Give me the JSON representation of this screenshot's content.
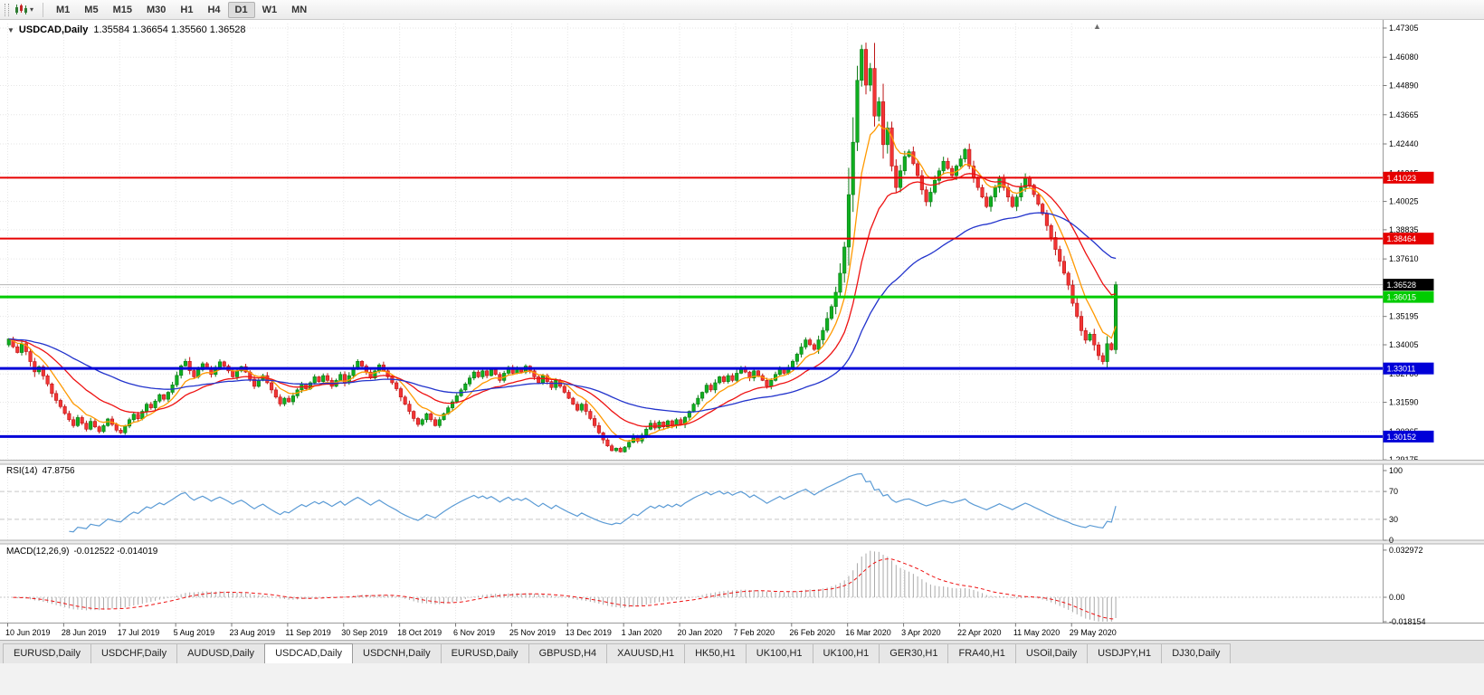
{
  "toolbar": {
    "timeframes": [
      "M1",
      "M5",
      "M15",
      "M30",
      "H1",
      "H4",
      "D1",
      "W1",
      "MN"
    ],
    "active": "D1"
  },
  "header": {
    "symbol": "USDCAD,Daily",
    "ohlc": "1.35584 1.36654 1.35560 1.36528"
  },
  "chart_data": {
    "type": "candlestick",
    "symbol": "USDCAD",
    "timeframe": "Daily",
    "x_labels": [
      "10 Jun 2019",
      "28 Jun 2019",
      "17 Jul 2019",
      "5 Aug 2019",
      "23 Aug 2019",
      "11 Sep 2019",
      "30 Sep 2019",
      "18 Oct 2019",
      "6 Nov 2019",
      "25 Nov 2019",
      "13 Dec 2019",
      "1 Jan 2020",
      "20 Jan 2020",
      "7 Feb 2020",
      "26 Feb 2020",
      "16 Mar 2020",
      "3 Apr 2020",
      "22 Apr 2020",
      "11 May 2020",
      "29 May 2020"
    ],
    "x_label_step": 13,
    "closes": [
      1.3425,
      1.3392,
      1.3368,
      1.3405,
      1.3372,
      1.333,
      1.3287,
      1.3308,
      1.327,
      1.3236,
      1.3196,
      1.3167,
      1.3141,
      1.3112,
      1.3086,
      1.3061,
      1.3095,
      1.3071,
      1.3046,
      1.3079,
      1.3056,
      1.3036,
      1.3061,
      1.3089,
      1.3066,
      1.3042,
      1.3031,
      1.3059,
      1.3086,
      1.3109,
      1.309,
      1.3121,
      1.3151,
      1.3136,
      1.3164,
      1.3191,
      1.3172,
      1.3201,
      1.3232,
      1.3272,
      1.3312,
      1.3331,
      1.3292,
      1.3266,
      1.3296,
      1.3321,
      1.3301,
      1.3276,
      1.3306,
      1.3329,
      1.3311,
      1.3291,
      1.3266,
      1.3291,
      1.3309,
      1.3286,
      1.3256,
      1.3226,
      1.3251,
      1.3271,
      1.3241,
      1.3211,
      1.3181,
      1.3152,
      1.3176,
      1.3161,
      1.3186,
      1.3211,
      1.3236,
      1.3216,
      1.3241,
      1.3266,
      1.3246,
      1.3271,
      1.3251,
      1.3226,
      1.3251,
      1.3276,
      1.3241,
      1.3271,
      1.3301,
      1.3331,
      1.3311,
      1.3286,
      1.3261,
      1.3291,
      1.3316,
      1.3291,
      1.3266,
      1.3241,
      1.3216,
      1.3181,
      1.3151,
      1.3121,
      1.3091,
      1.3066,
      1.3086,
      1.3111,
      1.3086,
      1.3061,
      1.3086,
      1.3111,
      1.3136,
      1.3161,
      1.3186,
      1.3211,
      1.3236,
      1.3261,
      1.3286,
      1.3266,
      1.3291,
      1.3271,
      1.3296,
      1.3276,
      1.3251,
      1.3281,
      1.3306,
      1.3281,
      1.3301,
      1.3286,
      1.3311,
      1.3291,
      1.3266,
      1.3241,
      1.3271,
      1.3246,
      1.3221,
      1.3251,
      1.3226,
      1.3201,
      1.3176,
      1.3151,
      1.3126,
      1.3151,
      1.3121,
      1.3091,
      1.3061,
      1.3031,
      1.3001,
      1.2976,
      1.2956,
      1.2966,
      1.2951,
      1.2971,
      1.2991,
      1.3016,
      1.2996,
      1.3021,
      1.3046,
      1.3071,
      1.3051,
      1.3076,
      1.3056,
      1.3081,
      1.3061,
      1.3086,
      1.3066,
      1.3096,
      1.3121,
      1.3151,
      1.3176,
      1.3201,
      1.3231,
      1.3211,
      1.3241,
      1.3266,
      1.3246,
      1.3271,
      1.3251,
      1.3281,
      1.3301,
      1.3286,
      1.3261,
      1.3291,
      1.3271,
      1.3251,
      1.3226,
      1.3251,
      1.3276,
      1.3301,
      1.3281,
      1.3306,
      1.3331,
      1.3361,
      1.3391,
      1.3421,
      1.3401,
      1.3381,
      1.3421,
      1.3461,
      1.3511,
      1.3561,
      1.3621,
      1.3701,
      1.3811,
      1.4031,
      1.4251,
      1.4511,
      1.4641,
      1.4491,
      1.4561,
      1.4361,
      1.4421,
      1.4241,
      1.4311,
      1.4151,
      1.4061,
      1.4131,
      1.4191,
      1.4211,
      1.4161,
      1.4111,
      1.4051,
      1.4001,
      1.4041,
      1.4091,
      1.4131,
      1.4171,
      1.4141,
      1.4111,
      1.4151,
      1.4181,
      1.4221,
      1.4151,
      1.4101,
      1.4061,
      1.4021,
      1.3981,
      1.4021,
      1.4061,
      1.4101,
      1.4061,
      1.4021,
      1.3981,
      1.4021,
      1.4061,
      1.4101,
      1.4071,
      1.4031,
      1.3991,
      1.3951,
      1.3901,
      1.3851,
      1.3801,
      1.3751,
      1.3701,
      1.3651,
      1.3575,
      1.352,
      1.346,
      1.342,
      1.3445,
      1.34,
      1.3355,
      1.333,
      1.3405,
      1.338,
      1.36528
    ],
    "y_ticks": [
      "1.47305",
      "1.46080",
      "1.44890",
      "1.43665",
      "1.42440",
      "1.41215",
      "1.40025",
      "1.38835",
      "1.37610",
      "1.36420",
      "1.35195",
      "1.34005",
      "1.32780",
      "1.31590",
      "1.30365",
      "1.29175"
    ],
    "hlines": [
      {
        "price": 1.41023,
        "label": "1.41023",
        "color": "#e60000",
        "width": 2
      },
      {
        "price": 1.38464,
        "label": "1.38464",
        "color": "#e60000",
        "width": 2
      },
      {
        "price": 1.36015,
        "label": "1.36015",
        "color": "#00cc00",
        "width": 3
      },
      {
        "price": 1.33011,
        "label": "1.33011",
        "color": "#0000d8",
        "width": 3
      },
      {
        "price": 1.30152,
        "label": "1.30152",
        "color": "#0000d8",
        "width": 3
      }
    ],
    "current_price": {
      "price": 1.36528,
      "label": "1.36528",
      "badge_color": "#000000",
      "line_color": "#b4b4b4"
    },
    "moving_averages": [
      {
        "period": 8,
        "color": "#ff9900"
      },
      {
        "period": 21,
        "color": "#ee1111"
      },
      {
        "period": 55,
        "color": "#2233cc"
      }
    ],
    "rsi": {
      "label": "RSI(14)",
      "value": "47.8756",
      "period": 14,
      "ticks": [
        100,
        70,
        30,
        0
      ],
      "levels": [
        70,
        30
      ],
      "color": "#5b9bd5"
    },
    "macd": {
      "label": "MACD(12,26,9)",
      "values": "-0.012522 -0.014019",
      "fast": 12,
      "slow": 26,
      "signal": 9,
      "ticks": [
        {
          "v": 0.032972,
          "label": "0.032972"
        },
        {
          "v": 0,
          "label": "0.00"
        },
        {
          "v": -0.018154,
          "label": "-0.018154"
        }
      ],
      "hist_color": "#aaaaaa",
      "signal_color": "#ee1111"
    },
    "colors": {
      "up": "#0faf20",
      "up_stroke": "#0a7a14",
      "down": "#f23535",
      "down_stroke": "#bd1515",
      "grid": "#e6e6e6",
      "axis_text": "#000000"
    }
  },
  "tabs": [
    {
      "label": "EURUSD,Daily",
      "active": false
    },
    {
      "label": "USDCHF,Daily",
      "active": false
    },
    {
      "label": "AUDUSD,Daily",
      "active": false
    },
    {
      "label": "USDCAD,Daily",
      "active": true
    },
    {
      "label": "USDCNH,Daily",
      "active": false
    },
    {
      "label": "EURUSD,Daily",
      "active": false
    },
    {
      "label": "GBPUSD,H4",
      "active": false
    },
    {
      "label": "XAUUSD,H1",
      "active": false
    },
    {
      "label": "HK50,H1",
      "active": false
    },
    {
      "label": "UK100,H1",
      "active": false
    },
    {
      "label": "UK100,H1",
      "active": false
    },
    {
      "label": "GER30,H1",
      "active": false
    },
    {
      "label": "FRA40,H1",
      "active": false
    },
    {
      "label": "USOil,Daily",
      "active": false
    },
    {
      "label": "USDJPY,H1",
      "active": false
    },
    {
      "label": "DJ30,Daily",
      "active": false
    }
  ]
}
